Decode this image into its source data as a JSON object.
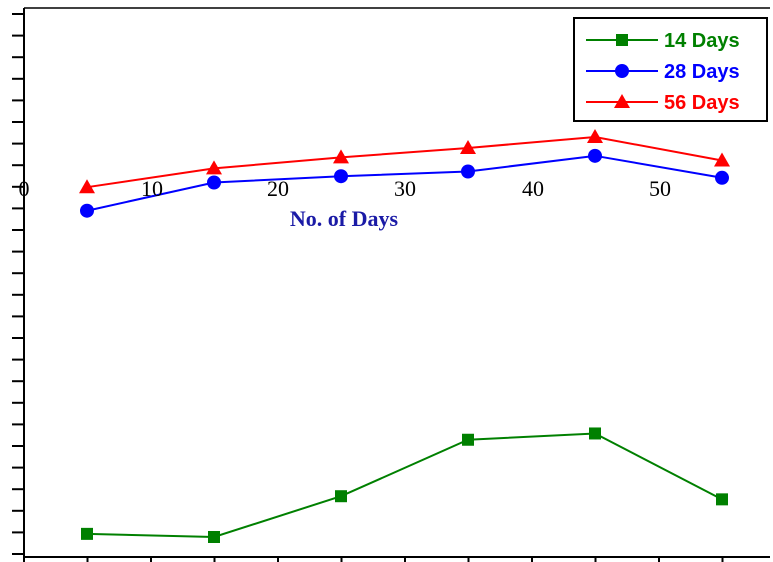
{
  "chart_data": {
    "type": "line",
    "title": "",
    "xlabel": "No. of Days",
    "ylabel": "",
    "x_ticks": [
      "0",
      "10",
      "20",
      "30",
      "40",
      "50"
    ],
    "x": [
      5,
      15,
      25,
      35,
      45,
      55
    ],
    "xlim": [
      0,
      60
    ],
    "grid": false,
    "legend_position": "top-right",
    "series": [
      {
        "name": "14 Days",
        "color": "#008000",
        "marker": "square",
        "values": [
          23.4,
          23.2,
          25.8,
          29.4,
          29.8,
          25.6
        ]
      },
      {
        "name": "28 Days",
        "color": "#0000ff",
        "marker": "circle",
        "values": [
          44.0,
          45.8,
          46.2,
          46.5,
          47.5,
          46.1
        ]
      },
      {
        "name": "56 Days",
        "color": "#ff0000",
        "marker": "triangle",
        "values": [
          45.5,
          46.7,
          47.4,
          48.0,
          48.7,
          47.2
        ]
      }
    ]
  }
}
